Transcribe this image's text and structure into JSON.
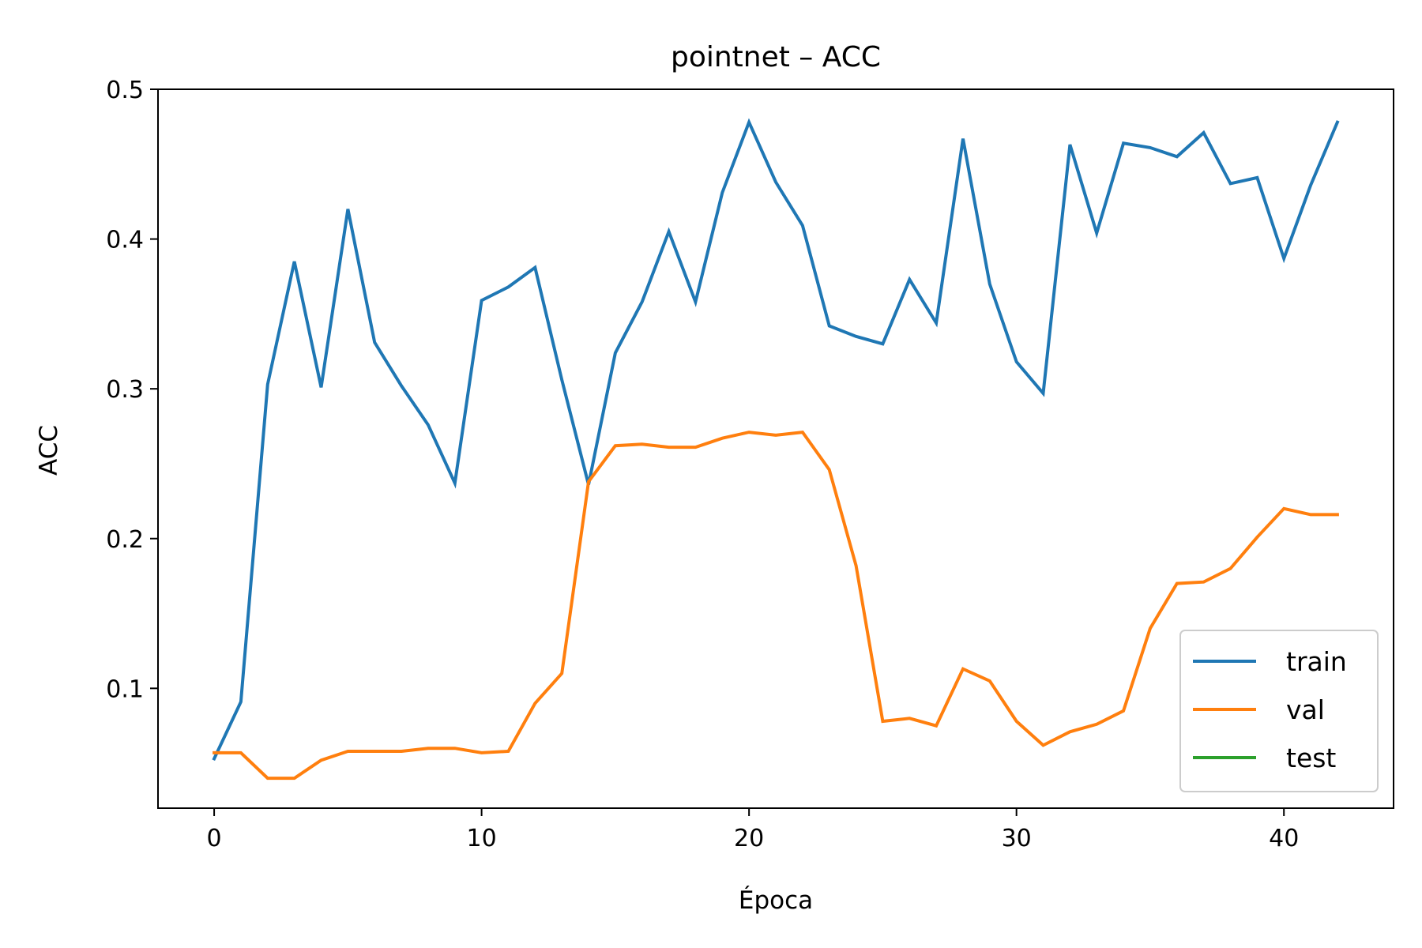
{
  "chart_data": {
    "type": "line",
    "title": "pointnet – ACC",
    "xlabel": "Época",
    "ylabel": "ACC",
    "xlim": [
      -2.1,
      44.1
    ],
    "ylim": [
      0.02,
      0.5
    ],
    "xticks": [
      0,
      10,
      20,
      30,
      40
    ],
    "yticks": [
      0.1,
      0.2,
      0.3,
      0.4,
      0.5
    ],
    "xtick_labels": [
      "0",
      "10",
      "20",
      "30",
      "40"
    ],
    "ytick_labels": [
      "0.1",
      "0.2",
      "0.3",
      "0.4",
      "0.5"
    ],
    "grid": false,
    "legend_position": "lower-right",
    "series": [
      {
        "name": "train",
        "color": "#1f77b4",
        "x": [
          0,
          1,
          2,
          3,
          4,
          5,
          6,
          7,
          8,
          9,
          10,
          11,
          12,
          13,
          14,
          15,
          16,
          17,
          18,
          19,
          20,
          21,
          22,
          23,
          24,
          25,
          26,
          27,
          28,
          29,
          30,
          31,
          32,
          33,
          34,
          35,
          36,
          37,
          38,
          39,
          40,
          41,
          42
        ],
        "values": [
          0.053,
          0.091,
          0.303,
          0.385,
          0.301,
          0.42,
          0.331,
          0.302,
          0.276,
          0.237,
          0.359,
          0.368,
          0.381,
          0.306,
          0.236,
          0.324,
          0.358,
          0.405,
          0.358,
          0.431,
          0.478,
          0.438,
          0.409,
          0.342,
          0.335,
          0.33,
          0.373,
          0.344,
          0.467,
          0.37,
          0.318,
          0.297,
          0.463,
          0.404,
          0.464,
          0.461,
          0.455,
          0.471,
          0.437,
          0.441,
          0.387,
          0.436,
          0.478
        ]
      },
      {
        "name": "val",
        "color": "#ff7f0e",
        "x": [
          0,
          1,
          2,
          3,
          4,
          5,
          6,
          7,
          8,
          9,
          10,
          11,
          12,
          13,
          14,
          15,
          16,
          17,
          18,
          19,
          20,
          21,
          22,
          23,
          24,
          25,
          26,
          27,
          28,
          29,
          30,
          31,
          32,
          33,
          34,
          35,
          36,
          37,
          38,
          39,
          40,
          41,
          42
        ],
        "values": [
          0.057,
          0.057,
          0.04,
          0.04,
          0.052,
          0.058,
          0.058,
          0.058,
          0.06,
          0.06,
          0.057,
          0.058,
          0.09,
          0.11,
          0.238,
          0.262,
          0.263,
          0.261,
          0.261,
          0.267,
          0.271,
          0.269,
          0.271,
          0.246,
          0.182,
          0.078,
          0.08,
          0.075,
          0.113,
          0.105,
          0.078,
          0.062,
          0.071,
          0.076,
          0.085,
          0.14,
          0.17,
          0.171,
          0.18,
          0.201,
          0.22,
          0.216,
          0.216
        ]
      },
      {
        "name": "test",
        "color": "#2ca02c",
        "x": [],
        "values": []
      }
    ]
  }
}
